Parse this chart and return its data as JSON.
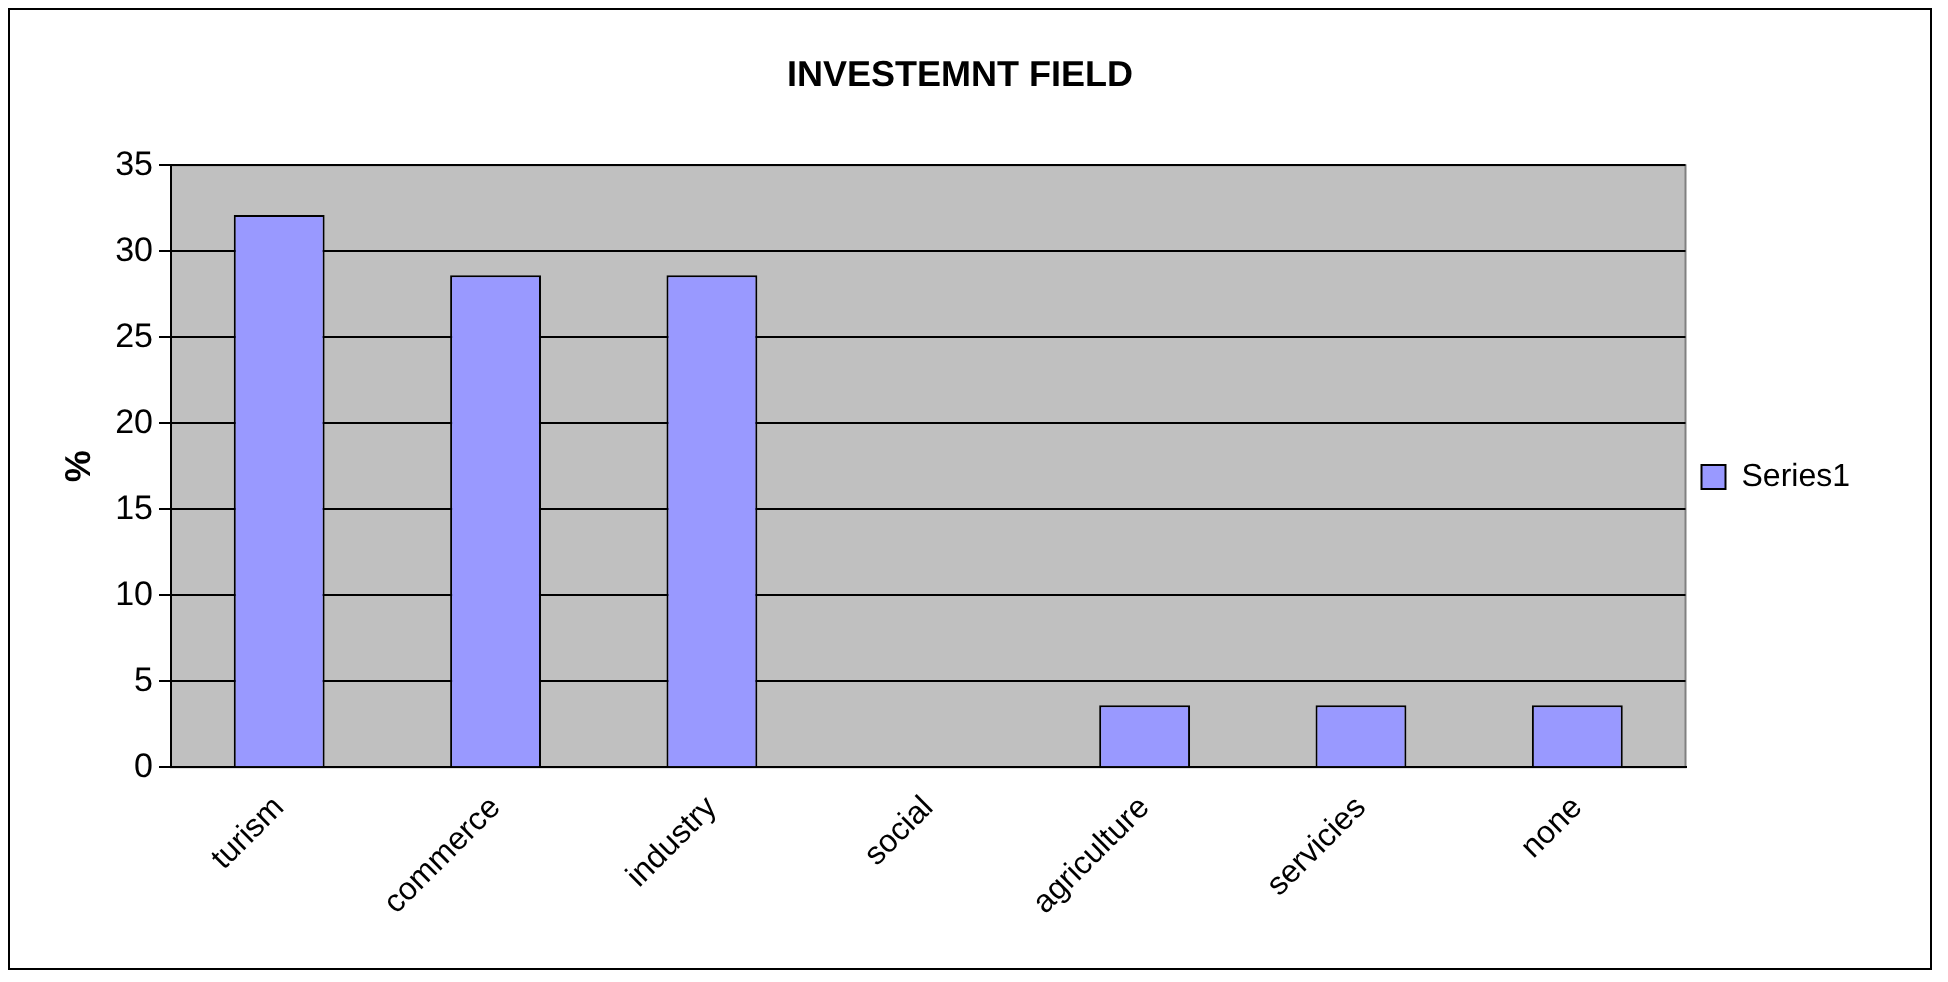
{
  "chart_data": {
    "type": "bar",
    "title": "INVESTEMNT FIELD",
    "ylabel": "%",
    "categories": [
      "turism",
      "commerce",
      "industry",
      "social",
      "agriculture",
      "servicies",
      "none"
    ],
    "series": [
      {
        "name": "Series1",
        "color": "#9999ff",
        "values": [
          32.1,
          28.6,
          28.6,
          0,
          3.6,
          3.6,
          3.6
        ]
      }
    ],
    "ylim": [
      0,
      35
    ],
    "yticks": [
      0,
      5,
      10,
      15,
      20,
      25,
      30,
      35
    ],
    "grid": "y",
    "legend": "right"
  }
}
